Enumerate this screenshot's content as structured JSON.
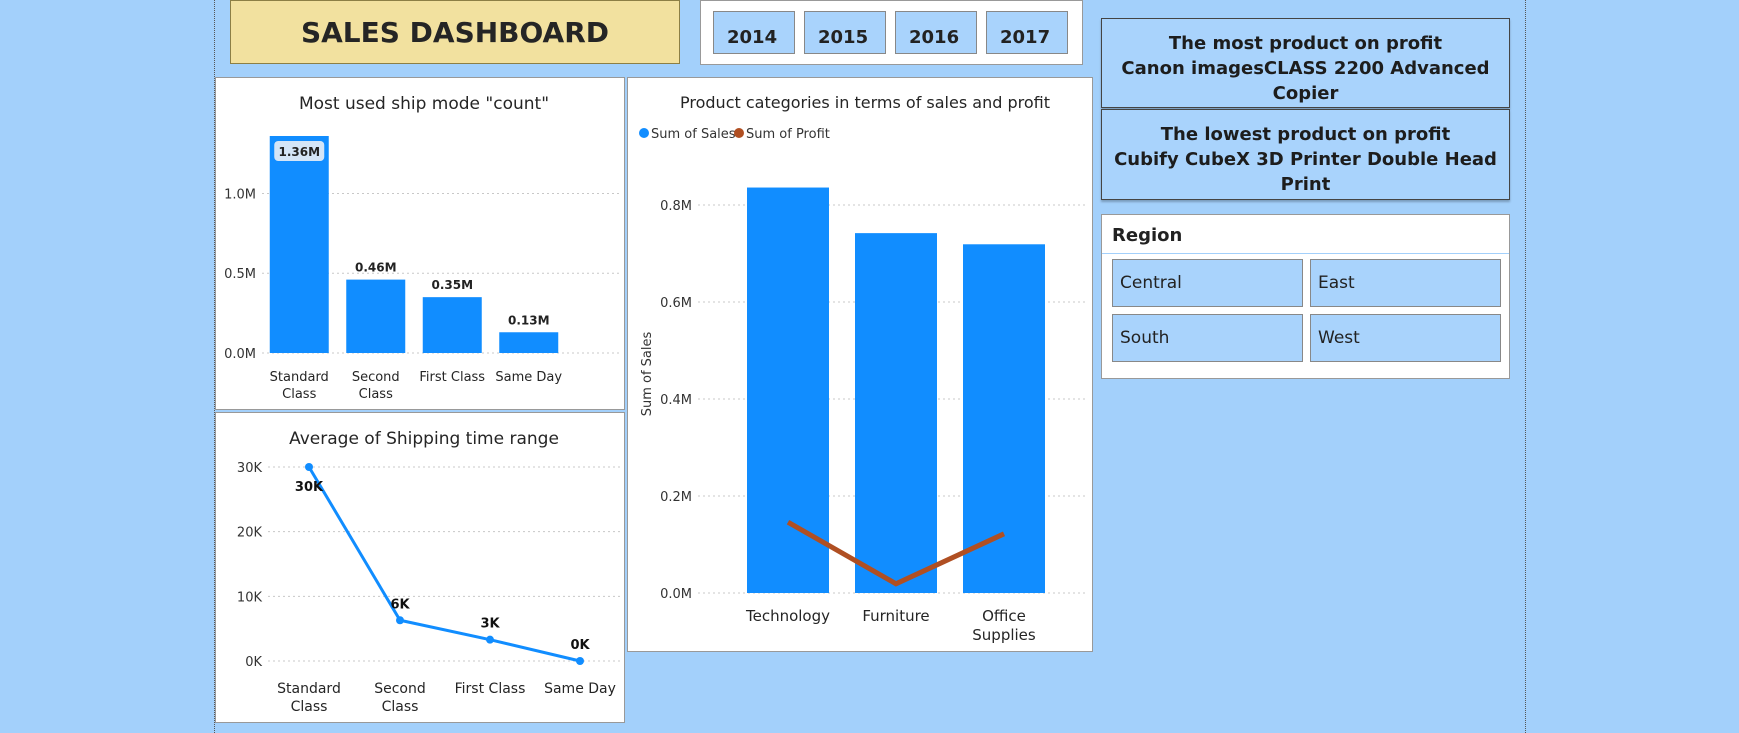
{
  "dashboard": {
    "title": "SALES DASHBOARD"
  },
  "years": [
    "2014",
    "2015",
    "2016",
    "2017"
  ],
  "info": {
    "most_heading": "The most product on profit",
    "most_product": "Canon imagesCLASS 2200 Advanced Copier",
    "lowest_heading": "The lowest product on profit",
    "lowest_product": "Cubify CubeX 3D Printer Double Head Print"
  },
  "region": {
    "title": "Region",
    "options": [
      "Central",
      "East",
      "South",
      "West"
    ]
  },
  "colors": {
    "bar": "#118dff",
    "profit": "#b04f22",
    "page_bg": "#a3d0fb",
    "title_bg": "#f2e19f",
    "button_bg": "#a9d3fc"
  },
  "chart_data": [
    {
      "id": "ship_mode",
      "type": "bar",
      "title": "Most used ship mode \"count\"",
      "categories": [
        [
          "Standard",
          "Class"
        ],
        [
          "Second",
          "Class"
        ],
        [
          "First Class"
        ],
        [
          "Same Day"
        ]
      ],
      "values": [
        1.36,
        0.46,
        0.35,
        0.13
      ],
      "data_labels": [
        "1.36M",
        "0.46M",
        "0.35M",
        "0.13M"
      ],
      "ylim": [
        0,
        1.36
      ],
      "yticks": [
        0,
        0.5,
        1.0
      ],
      "ytick_labels": [
        "0.0M",
        "0.5M",
        "1.0M"
      ],
      "grid": true
    },
    {
      "id": "shipping_time",
      "type": "line",
      "title": "Average of Shipping time range",
      "categories": [
        [
          "Standard",
          "Class"
        ],
        [
          "Second",
          "Class"
        ],
        [
          "First Class"
        ],
        [
          "Same Day"
        ]
      ],
      "values": [
        30,
        6.3,
        3.3,
        0
      ],
      "data_labels": [
        "30K",
        "6K",
        "3K",
        "0K"
      ],
      "ylim": [
        0,
        30
      ],
      "yticks": [
        0,
        10,
        20,
        30
      ],
      "ytick_labels": [
        "0K",
        "10K",
        "20K",
        "30K"
      ],
      "grid": true
    },
    {
      "id": "categories",
      "type": "bar",
      "title": "Product categories in terms of sales and profit",
      "ylabel": "Sum of Sales",
      "legend": {
        "placement": "top-left",
        "entries": [
          "Sum of Sales",
          "Sum of Profit"
        ]
      },
      "categories": [
        [
          "Technology"
        ],
        [
          "Furniture"
        ],
        [
          "Office",
          "Supplies"
        ]
      ],
      "series": [
        {
          "name": "Sum of Sales",
          "type": "bar",
          "values": [
            0.836,
            0.742,
            0.719
          ]
        },
        {
          "name": "Sum of Profit",
          "type": "line",
          "values": [
            0.146,
            0.019,
            0.122
          ]
        }
      ],
      "ylim": [
        0,
        0.8
      ],
      "yticks": [
        0,
        0.2,
        0.4,
        0.6,
        0.8
      ],
      "ytick_labels": [
        "0.0M",
        "0.2M",
        "0.4M",
        "0.6M",
        "0.8M"
      ],
      "grid": true
    }
  ]
}
